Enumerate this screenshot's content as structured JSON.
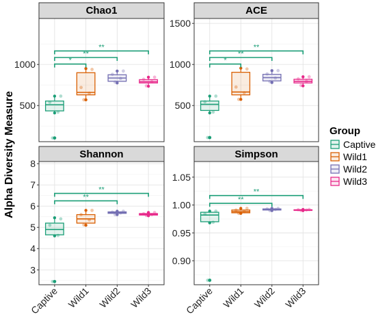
{
  "chart_data": {
    "type": "boxplot",
    "ylabel": "Alpha Diversity Measure",
    "categories": [
      "Captive",
      "Wild1",
      "Wild2",
      "Wild3"
    ],
    "legend": {
      "title": "Group",
      "placement": "right",
      "items": [
        {
          "label": "Captive",
          "color": "#1b9e77"
        },
        {
          "label": "Wild1",
          "color": "#d95f02"
        },
        {
          "label": "Wild2",
          "color": "#7570b3"
        },
        {
          "label": "Wild3",
          "color": "#e7298a"
        }
      ]
    },
    "grid": true,
    "panels": [
      {
        "title": "Chao1",
        "ylim": [
          60,
          1560
        ],
        "yticks": [
          500,
          1000
        ],
        "ytick_labels": [
          "500",
          "1000"
        ],
        "boxes": [
          {
            "group": "Captive",
            "min": 410,
            "q1": 435,
            "median": 510,
            "q3": 555,
            "max": 615,
            "outliers": [
              105
            ],
            "points": [
              105,
              420,
              540,
              615
            ]
          },
          {
            "group": "Wild1",
            "min": 570,
            "q1": 630,
            "median": 660,
            "q3": 900,
            "max": 950,
            "outliers": [],
            "points": [
              570,
              650,
              720,
              940
            ]
          },
          {
            "group": "Wild2",
            "min": 775,
            "q1": 795,
            "median": 835,
            "q3": 875,
            "max": 920,
            "outliers": [],
            "points": [
              785,
              830,
              880,
              920
            ]
          },
          {
            "group": "Wild3",
            "min": 735,
            "q1": 775,
            "median": 790,
            "q3": 815,
            "max": 845,
            "outliers": [],
            "points": [
              740,
              790,
              820,
              845
            ]
          }
        ],
        "brackets": [
          {
            "from": "Captive",
            "to": "Wild1",
            "label": "*",
            "y": 1005
          },
          {
            "from": "Captive",
            "to": "Wild2",
            "label": "**",
            "y": 1085
          },
          {
            "from": "Captive",
            "to": "Wild3",
            "label": "**",
            "y": 1165
          }
        ]
      },
      {
        "title": "ACE",
        "ylim": [
          60,
          1560
        ],
        "yticks": [
          500,
          1000,
          1500
        ],
        "ytick_labels": [
          "500",
          "1000",
          "1500"
        ],
        "boxes": [
          {
            "group": "Captive",
            "min": 410,
            "q1": 440,
            "median": 515,
            "q3": 555,
            "max": 615,
            "outliers": [
              110
            ],
            "points": [
              110,
              420,
              545,
              615
            ]
          },
          {
            "group": "Wild1",
            "min": 575,
            "q1": 630,
            "median": 665,
            "q3": 905,
            "max": 955,
            "outliers": [],
            "points": [
              575,
              655,
              725,
              945
            ]
          },
          {
            "group": "Wild2",
            "min": 780,
            "q1": 800,
            "median": 840,
            "q3": 880,
            "max": 925,
            "outliers": [],
            "points": [
              790,
              835,
              885,
              925
            ]
          },
          {
            "group": "Wild3",
            "min": 740,
            "q1": 775,
            "median": 795,
            "q3": 820,
            "max": 850,
            "outliers": [],
            "points": [
              745,
              795,
              825,
              850
            ]
          }
        ],
        "brackets": [
          {
            "from": "Captive",
            "to": "Wild1",
            "label": "*",
            "y": 1005
          },
          {
            "from": "Captive",
            "to": "Wild2",
            "label": "**",
            "y": 1085
          },
          {
            "from": "Captive",
            "to": "Wild3",
            "label": "**",
            "y": 1165
          }
        ]
      },
      {
        "title": "Shannon",
        "ylim": [
          2.3,
          8.1
        ],
        "yticks": [
          3,
          4,
          5,
          6,
          7,
          8
        ],
        "ytick_labels": [
          "3",
          "4",
          "5",
          "6",
          "7",
          "8"
        ],
        "boxes": [
          {
            "group": "Captive",
            "min": 4.6,
            "q1": 4.65,
            "median": 4.9,
            "q3": 5.2,
            "max": 5.45,
            "outliers": [
              2.45
            ],
            "points": [
              2.45,
              4.62,
              5.1,
              5.4
            ]
          },
          {
            "group": "Wild1",
            "min": 5.1,
            "q1": 5.2,
            "median": 5.4,
            "q3": 5.6,
            "max": 5.8,
            "outliers": [],
            "points": [
              5.12,
              5.35,
              5.6,
              5.8
            ]
          },
          {
            "group": "Wild2",
            "min": 5.6,
            "q1": 5.66,
            "median": 5.69,
            "q3": 5.73,
            "max": 5.76,
            "outliers": [],
            "points": [
              5.6,
              5.68,
              5.72,
              5.76
            ]
          },
          {
            "group": "Wild3",
            "min": 5.55,
            "q1": 5.58,
            "median": 5.61,
            "q3": 5.65,
            "max": 5.7,
            "outliers": [],
            "points": [
              5.56,
              5.6,
              5.64,
              5.7
            ]
          }
        ],
        "brackets": [
          {
            "from": "Captive",
            "to": "Wild2",
            "label": "**",
            "y": 6.25
          },
          {
            "from": "Captive",
            "to": "Wild3",
            "label": "**",
            "y": 6.6
          }
        ]
      },
      {
        "title": "Simpson",
        "ylim": [
          0.857,
          1.078
        ],
        "yticks": [
          0.9,
          0.95,
          1.0,
          1.05
        ],
        "ytick_labels": [
          "0.90",
          "0.95",
          "1.00",
          "1.05"
        ],
        "boxes": [
          {
            "group": "Captive",
            "min": 0.968,
            "q1": 0.97,
            "median": 0.982,
            "q3": 0.987,
            "max": 0.989,
            "outliers": [
              0.865
            ],
            "points": [
              0.865,
              0.969,
              0.984,
              0.989
            ]
          },
          {
            "group": "Wild1",
            "min": 0.985,
            "q1": 0.986,
            "median": 0.988,
            "q3": 0.991,
            "max": 0.994,
            "outliers": [],
            "points": [
              0.985,
              0.988,
              0.991,
              0.994
            ]
          },
          {
            "group": "Wild2",
            "min": 0.99,
            "q1": 0.991,
            "median": 0.992,
            "q3": 0.993,
            "max": 0.994,
            "outliers": [],
            "points": [
              0.99,
              0.992,
              0.993,
              0.994
            ]
          },
          {
            "group": "Wild3",
            "min": 0.99,
            "q1": 0.9905,
            "median": 0.991,
            "q3": 0.9915,
            "max": 0.992,
            "outliers": [],
            "points": [
              0.99,
              0.991,
              0.9915,
              0.992
            ]
          }
        ],
        "brackets": [
          {
            "from": "Captive",
            "to": "Wild2",
            "label": "**",
            "y": 1.003
          },
          {
            "from": "Captive",
            "to": "Wild3",
            "label": "**",
            "y": 1.017
          }
        ]
      }
    ]
  }
}
